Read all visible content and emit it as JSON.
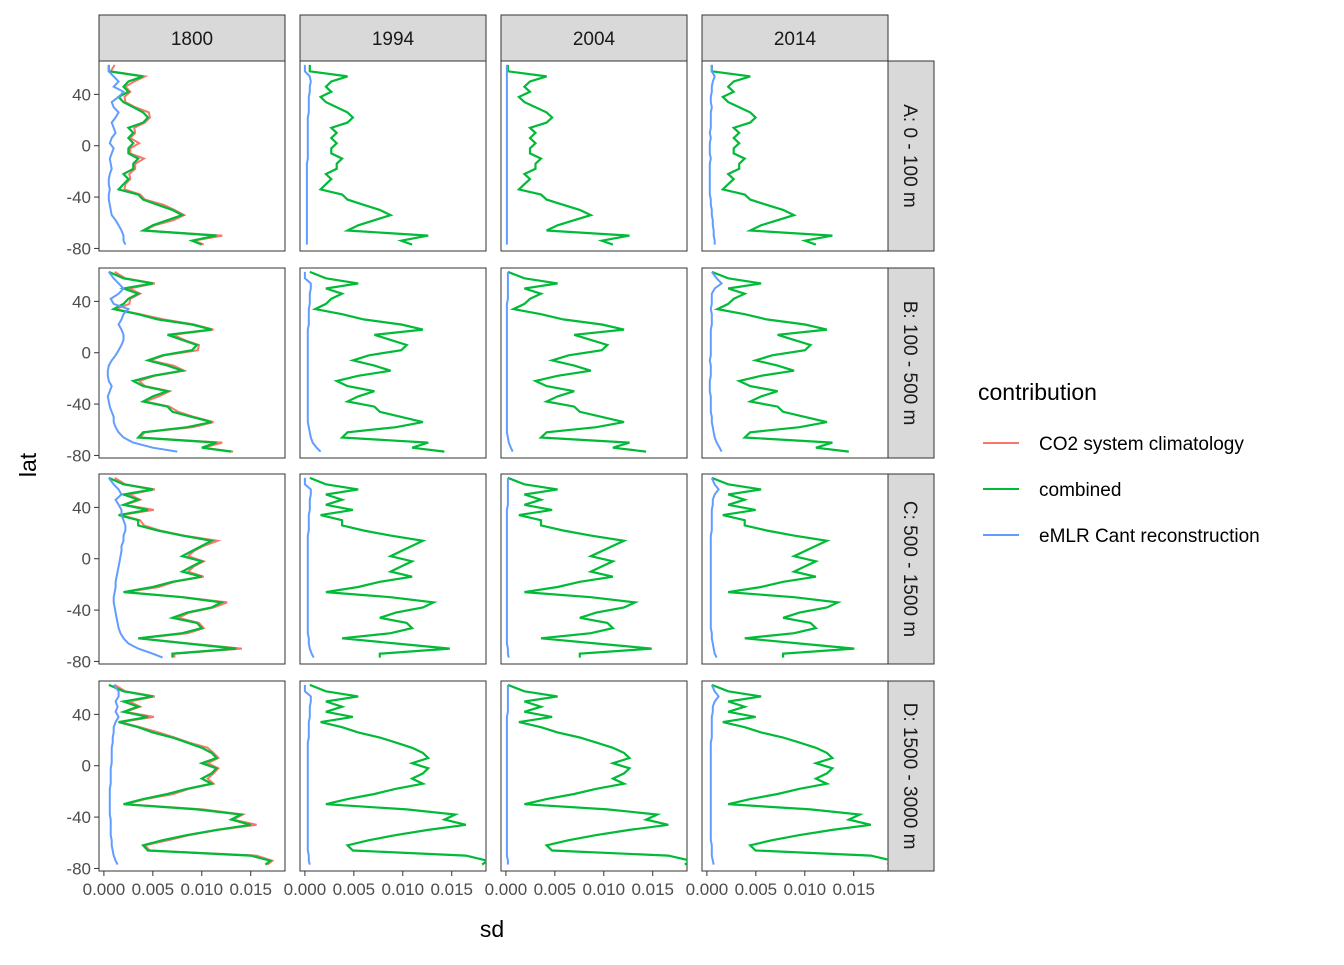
{
  "chart_data": {
    "type": "line",
    "facet_cols": [
      "1800",
      "1994",
      "2004",
      "2014"
    ],
    "facet_rows": [
      "A: 0 - 100 m",
      "B: 100 - 500 m",
      "C: 500 - 1500 m",
      "D: 1500 - 3000 m"
    ],
    "xlabel": "sd",
    "ylabel": "lat",
    "xlim": [
      -0.0005,
      0.0185
    ],
    "ylim": [
      -82,
      66
    ],
    "x_ticks": [
      0.0,
      0.005,
      0.01,
      0.015
    ],
    "x_tick_labels": [
      "0.000",
      "0.005",
      "0.010",
      "0.015"
    ],
    "y_ticks": [
      -80,
      -40,
      0,
      40
    ],
    "y_tick_labels": [
      "-80",
      "-40",
      "0",
      "40"
    ],
    "legend": {
      "title": "contribution",
      "placement": "right",
      "entries": [
        {
          "label": "CO2 system climatology",
          "color": "#F8766D"
        },
        {
          "label": "combined",
          "color": "#00BA38"
        },
        {
          "label": "eMLR Cant reconstruction",
          "color": "#619CFF"
        }
      ]
    },
    "lat_grid": [
      63,
      58,
      54,
      50,
      46,
      42,
      38,
      34,
      30,
      26,
      22,
      18,
      14,
      10,
      6,
      2,
      -2,
      -6,
      -10,
      -14,
      -18,
      -22,
      -26,
      -30,
      -34,
      -38,
      -42,
      -46,
      -50,
      -54,
      -58,
      -62,
      -66,
      -70,
      -74,
      -77
    ],
    "combined_profiles": {
      "A": [
        0.0,
        0.0,
        0.0035,
        0.002,
        0.0015,
        0.002,
        0.001,
        0.0015,
        0.0025,
        0.0035,
        0.004,
        0.0035,
        0.002,
        0.0025,
        0.002,
        0.0025,
        0.002,
        0.002,
        0.003,
        0.0025,
        0.0025,
        0.0015,
        0.002,
        0.0015,
        0.001,
        0.003,
        0.0035,
        0.005,
        0.0065,
        0.0075,
        0.006,
        0.0045,
        0.0035,
        0.011,
        0.0085,
        0.0095
      ],
      "B": [
        0.0,
        0.0015,
        0.0045,
        0.0015,
        0.003,
        0.002,
        0.0015,
        0.0005,
        0.003,
        0.005,
        0.0085,
        0.0105,
        0.006,
        0.0075,
        0.009,
        0.0085,
        0.0055,
        0.004,
        0.006,
        0.0075,
        0.0045,
        0.0025,
        0.0035,
        0.006,
        0.0045,
        0.0035,
        0.006,
        0.0065,
        0.0085,
        0.0105,
        0.008,
        0.0035,
        0.003,
        0.011,
        0.0095,
        0.0125
      ],
      "C": [
        0.0,
        0.0015,
        0.0045,
        0.0015,
        0.003,
        0.0015,
        0.004,
        0.001,
        0.003,
        0.003,
        0.005,
        0.0075,
        0.0105,
        0.0095,
        0.0085,
        0.0075,
        0.0095,
        0.0085,
        0.0075,
        0.0095,
        0.0065,
        0.0045,
        0.0015,
        0.0075,
        0.0115,
        0.0105,
        0.008,
        0.0065,
        0.009,
        0.0095,
        0.0075,
        0.003,
        0.008,
        0.013,
        0.0065,
        0.0065
      ],
      "D": [
        0.0,
        0.0015,
        0.0045,
        0.0015,
        0.003,
        0.0015,
        0.004,
        0.001,
        0.003,
        0.0045,
        0.0065,
        0.008,
        0.0095,
        0.0105,
        0.011,
        0.0095,
        0.011,
        0.0105,
        0.0095,
        0.0105,
        0.008,
        0.006,
        0.0035,
        0.0015,
        0.009,
        0.0135,
        0.0125,
        0.0145,
        0.011,
        0.008,
        0.0055,
        0.0035,
        0.004,
        0.0145,
        0.0165,
        0.016
      ]
    },
    "col_scale": [
      1.0,
      1.1,
      1.13,
      1.12
    ],
    "col_offset": [
      0.0005,
      0.0005,
      0.0002,
      0.0005
    ],
    "emlr_profiles": {
      "1800": {
        "A": [
          0.0005,
          0.0005,
          0.001,
          0.0015,
          0.001,
          0.002,
          0.0015,
          0.0008,
          0.001,
          0.0015,
          0.0012,
          0.0008,
          0.001,
          0.0012,
          0.0008,
          0.0006,
          0.001,
          0.0008,
          0.0006,
          0.0007,
          0.0008,
          0.0006,
          0.0005,
          0.0005,
          0.0006,
          0.0005,
          0.0005,
          0.0006,
          0.0007,
          0.0008,
          0.0012,
          0.0015,
          0.0018,
          0.002,
          0.002,
          0.0022
        ],
        "B": [
          0.0005,
          0.001,
          0.0015,
          0.002,
          0.0015,
          0.0007,
          0.001,
          0.0025,
          0.002,
          0.0018,
          0.0015,
          0.0018,
          0.002,
          0.002,
          0.0018,
          0.0015,
          0.0012,
          0.0008,
          0.0005,
          0.0004,
          0.0004,
          0.0005,
          0.0008,
          0.0006,
          0.0004,
          0.0005,
          0.0006,
          0.0008,
          0.001,
          0.001,
          0.0012,
          0.0015,
          0.002,
          0.003,
          0.005,
          0.0075
        ],
        "C": [
          0.0005,
          0.001,
          0.0015,
          0.0018,
          0.0012,
          0.0015,
          0.0018,
          0.0018,
          0.002,
          0.0022,
          0.0022,
          0.002,
          0.002,
          0.0018,
          0.0018,
          0.0017,
          0.0016,
          0.0015,
          0.0014,
          0.0013,
          0.0012,
          0.0012,
          0.0011,
          0.001,
          0.001,
          0.0011,
          0.0012,
          0.0013,
          0.0014,
          0.0015,
          0.0017,
          0.002,
          0.0025,
          0.0035,
          0.005,
          0.006
        ],
        "D": [
          0.001,
          0.0015,
          0.0015,
          0.0012,
          0.0014,
          0.0012,
          0.0015,
          0.0012,
          0.001,
          0.001,
          0.0009,
          0.0009,
          0.0008,
          0.0008,
          0.0008,
          0.0008,
          0.0007,
          0.0007,
          0.0007,
          0.0007,
          0.0006,
          0.0006,
          0.0006,
          0.0006,
          0.0006,
          0.0006,
          0.0007,
          0.0007,
          0.0007,
          0.0007,
          0.0008,
          0.0008,
          0.0009,
          0.001,
          0.0012,
          0.0014
        ]
      },
      "1994": {
        "A": [
          0.0,
          0.0,
          0.0005,
          0.0006,
          0.0005,
          0.0005,
          0.0004,
          0.0004,
          0.0004,
          0.0004,
          0.0003,
          0.0003,
          0.0003,
          0.0003,
          0.0003,
          0.0003,
          0.0003,
          0.0003,
          0.0003,
          0.0002,
          0.0002,
          0.0002,
          0.0002,
          0.0002,
          0.0002,
          0.0002,
          0.0002,
          0.0002,
          0.0002,
          0.0002,
          0.0002,
          0.0002,
          0.0002,
          0.0002,
          0.0002,
          0.0002
        ],
        "B": [
          0.0,
          0.0,
          0.0006,
          0.0006,
          0.0005,
          0.0005,
          0.0005,
          0.0004,
          0.0004,
          0.0004,
          0.0004,
          0.0003,
          0.0003,
          0.0003,
          0.0003,
          0.0003,
          0.0003,
          0.0003,
          0.0003,
          0.0003,
          0.0003,
          0.0003,
          0.0003,
          0.0003,
          0.0003,
          0.0003,
          0.0003,
          0.0003,
          0.0003,
          0.0003,
          0.0004,
          0.0005,
          0.0006,
          0.0008,
          0.0012,
          0.0016
        ],
        "C": [
          0.0,
          0.0,
          0.0006,
          0.0006,
          0.0005,
          0.0005,
          0.0005,
          0.0004,
          0.0004,
          0.0004,
          0.0004,
          0.0003,
          0.0003,
          0.0003,
          0.0003,
          0.0003,
          0.0003,
          0.0003,
          0.0003,
          0.0003,
          0.0003,
          0.0003,
          0.0003,
          0.0003,
          0.0003,
          0.0003,
          0.0003,
          0.0003,
          0.0003,
          0.0003,
          0.0003,
          0.0004,
          0.0004,
          0.0005,
          0.0007,
          0.0009
        ],
        "D": [
          0.0,
          0.0,
          0.0006,
          0.0006,
          0.0005,
          0.0005,
          0.0005,
          0.0004,
          0.0004,
          0.0004,
          0.0004,
          0.0003,
          0.0003,
          0.0003,
          0.0003,
          0.0003,
          0.0003,
          0.0003,
          0.0003,
          0.0003,
          0.0003,
          0.0003,
          0.0003,
          0.0003,
          0.0003,
          0.0003,
          0.0003,
          0.0003,
          0.0003,
          0.0003,
          0.0003,
          0.0003,
          0.0003,
          0.0004,
          0.0004,
          0.0005
        ]
      },
      "2004": {
        "A": [
          0.0001,
          0.0001,
          0.0001,
          0.0001,
          0.0001,
          0.0001,
          0.0001,
          0.0001,
          0.0001,
          0.0001,
          0.0001,
          0.0001,
          0.0001,
          0.0001,
          0.0001,
          0.0001,
          0.0001,
          0.0001,
          0.0001,
          0.0001,
          0.0001,
          0.0001,
          0.0001,
          0.0001,
          0.0001,
          0.0001,
          0.0001,
          0.0001,
          0.0001,
          0.0001,
          0.0001,
          0.0001,
          0.0001,
          0.0001,
          0.0001,
          0.0001
        ],
        "B": [
          0.0002,
          0.0002,
          0.0002,
          0.0002,
          0.0002,
          0.0002,
          0.0001,
          0.0001,
          0.0001,
          0.0001,
          0.0001,
          0.0001,
          0.0001,
          0.0001,
          0.0001,
          0.0001,
          0.0001,
          0.0001,
          0.0001,
          0.0001,
          0.0001,
          0.0001,
          0.0001,
          0.0001,
          0.0001,
          0.0001,
          0.0001,
          0.0001,
          0.0001,
          0.0001,
          0.0001,
          0.0001,
          0.0002,
          0.0003,
          0.0005,
          0.0007
        ],
        "C": [
          0.0002,
          0.0002,
          0.0002,
          0.0002,
          0.0002,
          0.0002,
          0.0001,
          0.0001,
          0.0001,
          0.0001,
          0.0001,
          0.0001,
          0.0001,
          0.0001,
          0.0001,
          0.0001,
          0.0001,
          0.0001,
          0.0001,
          0.0001,
          0.0001,
          0.0001,
          0.0001,
          0.0001,
          0.0001,
          0.0001,
          0.0001,
          0.0001,
          0.0001,
          0.0001,
          0.0001,
          0.0001,
          0.0001,
          0.0002,
          0.0002,
          0.0003
        ],
        "D": [
          0.0002,
          0.0002,
          0.0002,
          0.0002,
          0.0002,
          0.0002,
          0.0001,
          0.0001,
          0.0001,
          0.0001,
          0.0001,
          0.0001,
          0.0001,
          0.0001,
          0.0001,
          0.0001,
          0.0001,
          0.0001,
          0.0001,
          0.0001,
          0.0001,
          0.0001,
          0.0001,
          0.0001,
          0.0001,
          0.0001,
          0.0001,
          0.0001,
          0.0001,
          0.0001,
          0.0001,
          0.0001,
          0.0001,
          0.0001,
          0.0002,
          0.0002
        ]
      },
      "2014": {
        "A": [
          0.0005,
          0.0005,
          0.0008,
          0.0006,
          0.0005,
          0.0005,
          0.0004,
          0.0004,
          0.0005,
          0.0004,
          0.0004,
          0.0004,
          0.0004,
          0.0003,
          0.0004,
          0.0003,
          0.0003,
          0.0003,
          0.0004,
          0.0003,
          0.0003,
          0.0003,
          0.0003,
          0.0003,
          0.0003,
          0.0003,
          0.0004,
          0.0004,
          0.0005,
          0.0005,
          0.0006,
          0.0006,
          0.0007,
          0.0007,
          0.0008,
          0.0008
        ],
        "B": [
          0.0005,
          0.001,
          0.0015,
          0.0008,
          0.0005,
          0.0005,
          0.0005,
          0.0004,
          0.0005,
          0.0005,
          0.0005,
          0.0004,
          0.0004,
          0.0004,
          0.0004,
          0.0004,
          0.0004,
          0.0003,
          0.0004,
          0.0004,
          0.0004,
          0.0003,
          0.0003,
          0.0003,
          0.0004,
          0.0004,
          0.0004,
          0.0004,
          0.0005,
          0.0005,
          0.0006,
          0.0007,
          0.0008,
          0.001,
          0.0013,
          0.0015
        ],
        "C": [
          0.0005,
          0.0008,
          0.0012,
          0.0008,
          0.0006,
          0.0006,
          0.0005,
          0.0005,
          0.0005,
          0.0005,
          0.0005,
          0.0004,
          0.0004,
          0.0004,
          0.0004,
          0.0004,
          0.0004,
          0.0004,
          0.0004,
          0.0004,
          0.0004,
          0.0004,
          0.0004,
          0.0004,
          0.0004,
          0.0004,
          0.0004,
          0.0004,
          0.0004,
          0.0004,
          0.0005,
          0.0005,
          0.0006,
          0.0007,
          0.0008,
          0.001
        ],
        "D": [
          0.0005,
          0.0008,
          0.0012,
          0.0008,
          0.0006,
          0.0006,
          0.0005,
          0.0005,
          0.0005,
          0.0005,
          0.0005,
          0.0004,
          0.0004,
          0.0004,
          0.0004,
          0.0004,
          0.0004,
          0.0004,
          0.0004,
          0.0004,
          0.0004,
          0.0004,
          0.0004,
          0.0004,
          0.0004,
          0.0004,
          0.0004,
          0.0004,
          0.0004,
          0.0004,
          0.0004,
          0.0005,
          0.0005,
          0.0005,
          0.0006,
          0.0007
        ]
      }
    }
  }
}
